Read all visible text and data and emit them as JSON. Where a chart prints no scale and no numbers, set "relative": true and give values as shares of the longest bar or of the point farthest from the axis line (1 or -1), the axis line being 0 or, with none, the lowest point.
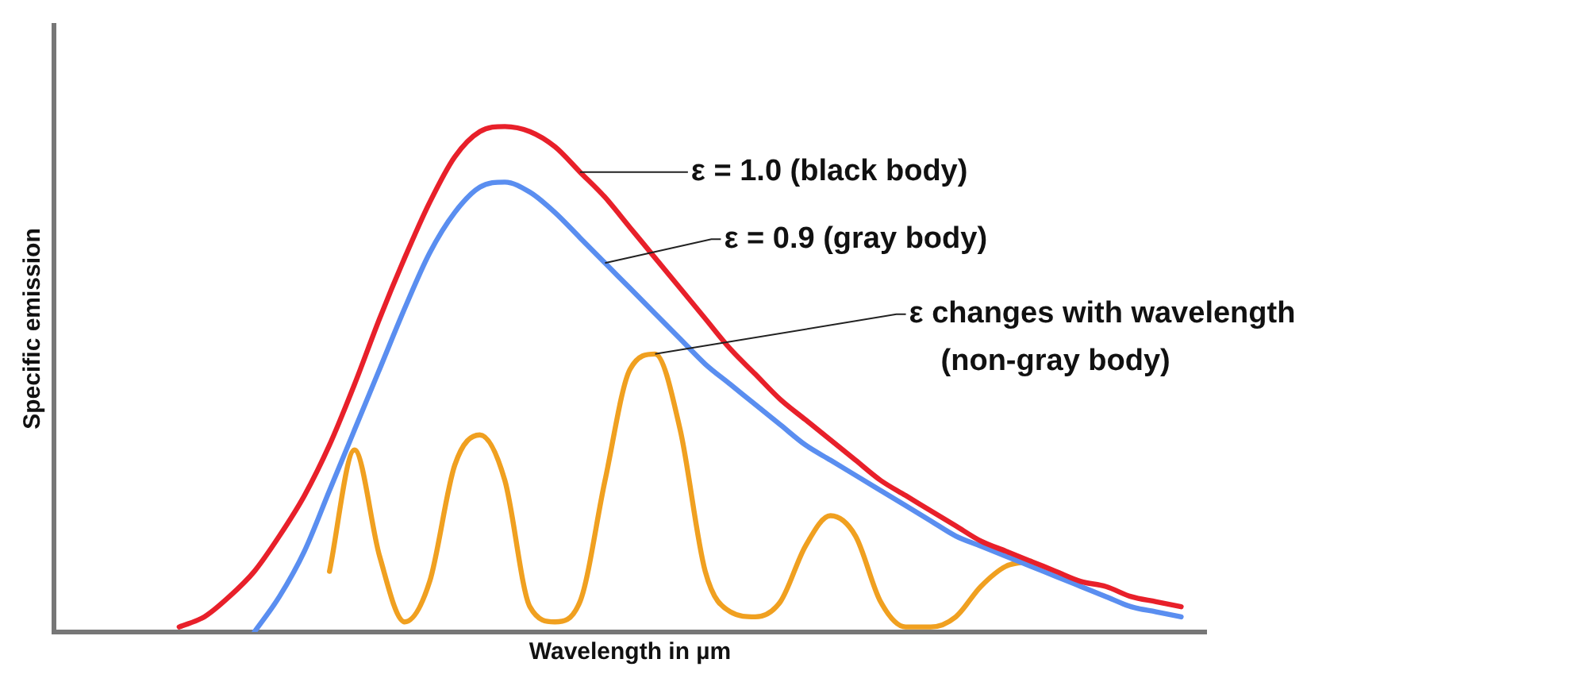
{
  "chart_data": {
    "type": "line",
    "relative": true,
    "xlabel": "Wavelength in µm",
    "ylabel": "Specific emission",
    "categories": [
      null,
      null,
      null,
      null,
      null,
      null,
      null,
      null,
      null,
      null,
      null,
      null,
      null,
      null,
      null,
      null,
      null,
      null,
      null,
      null,
      null,
      null,
      null,
      null,
      null,
      null,
      null,
      null,
      null,
      null,
      null,
      null,
      null,
      null,
      null,
      null,
      null,
      null,
      null,
      null,
      null,
      null,
      null,
      null,
      null,
      null,
      null
    ],
    "series": [
      {
        "color": "#e8202a",
        "values": [
          null,
          null,
          null,
          null,
          null,
          0.01,
          0.03,
          0.07,
          0.12,
          0.19,
          0.27,
          0.37,
          0.49,
          0.62,
          0.74,
          0.85,
          0.94,
          0.99,
          1.0,
          0.99,
          0.96,
          0.91,
          0.86,
          0.8,
          0.74,
          0.68,
          0.62,
          0.56,
          0.51,
          0.46,
          0.42,
          0.38,
          0.34,
          0.3,
          0.27,
          0.24,
          0.21,
          0.18,
          0.16,
          0.14,
          0.12,
          0.1,
          0.09,
          0.07,
          0.06,
          0.05,
          null
        ]
      },
      {
        "color": "#5a8ef0",
        "values": [
          null,
          null,
          null,
          null,
          null,
          null,
          null,
          null,
          0.0,
          0.07,
          0.16,
          0.28,
          0.4,
          0.52,
          0.64,
          0.75,
          0.83,
          0.88,
          0.89,
          0.87,
          0.83,
          0.78,
          0.73,
          0.68,
          0.63,
          0.58,
          0.53,
          0.49,
          0.45,
          0.41,
          0.37,
          0.34,
          0.31,
          0.28,
          0.25,
          0.22,
          0.19,
          0.17,
          0.15,
          0.13,
          0.11,
          0.09,
          0.07,
          0.05,
          0.04,
          0.03,
          null
        ]
      },
      {
        "color": "#f0a020",
        "values": [
          null,
          null,
          null,
          null,
          null,
          null,
          null,
          null,
          null,
          null,
          null,
          0.12,
          0.36,
          0.15,
          0.02,
          0.1,
          0.33,
          0.39,
          0.3,
          0.05,
          0.02,
          0.06,
          0.3,
          0.52,
          0.55,
          0.4,
          0.12,
          0.04,
          0.03,
          0.06,
          0.17,
          0.23,
          0.19,
          0.06,
          0.01,
          0.01,
          0.03,
          0.09,
          0.13,
          0.14,
          null,
          null,
          null,
          null,
          null,
          null,
          null
        ]
      }
    ],
    "annotations": [
      "ε = 1.0 (black body)",
      "ε = 0.9 (gray body)",
      "ε changes with wavelength\n(non-gray body)"
    ],
    "legend": false,
    "grid": false,
    "marker": "none",
    "line_style": "solid"
  }
}
